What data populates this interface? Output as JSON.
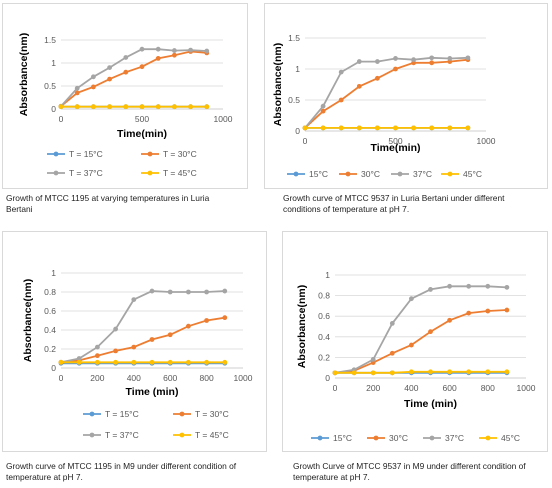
{
  "colors": {
    "series": [
      "#5b9bd5",
      "#ed7d31",
      "#a5a5a5",
      "#ffc000"
    ],
    "grid": "#d9d9d9",
    "axis": "#bfbfbf",
    "tick_text": "#595959"
  },
  "captions": [
    "Growth of MTCC 1195 at varying temperatures in Luria Bertani",
    "Growth curve of MTCC 9537 in Luria Bertani under different conditions of temperature at pH 7.",
    "Growth curve of MTCC 1195 in M9 under different condition of temperature at pH 7.",
    "Growth Curve of MTCC 9537 in M9 under different condition of temperature at pH 7."
  ],
  "chart_data": [
    {
      "type": "line",
      "title": "",
      "xlabel": "Time(min)",
      "ylabel": "Absorbance(nm)",
      "xlim": [
        0,
        1000
      ],
      "ylim": [
        0,
        1.5
      ],
      "xticks": [
        "0",
        "500",
        "1000"
      ],
      "yticks": [
        "0",
        "0.5",
        "1",
        "1.5"
      ],
      "grid": "horizontal",
      "legend_position": "bottom",
      "legend_rows": 2,
      "x": [
        0,
        100,
        200,
        300,
        400,
        500,
        600,
        700,
        800,
        900
      ],
      "series": [
        {
          "name": "T = 15°C",
          "values": [
            0.05,
            0.05,
            0.05,
            0.05,
            0.05,
            0.05,
            0.05,
            0.05,
            0.05,
            0.05
          ]
        },
        {
          "name": "T = 30°C",
          "values": [
            0.06,
            0.35,
            0.48,
            0.65,
            0.8,
            0.92,
            1.1,
            1.17,
            1.25,
            1.22
          ]
        },
        {
          "name": "T = 37°C",
          "values": [
            0.06,
            0.45,
            0.7,
            0.9,
            1.12,
            1.3,
            1.3,
            1.27,
            1.28,
            1.26
          ]
        },
        {
          "name": "T = 45°C",
          "values": [
            0.05,
            0.05,
            0.05,
            0.05,
            0.05,
            0.05,
            0.05,
            0.05,
            0.05,
            0.05
          ]
        }
      ]
    },
    {
      "type": "line",
      "title": "",
      "xlabel": "Time(min)",
      "ylabel": "Absorbance(nm)",
      "xlim": [
        0,
        1000
      ],
      "ylim": [
        0,
        1.5
      ],
      "xticks": [
        "0",
        "500",
        "1000"
      ],
      "yticks": [
        "0",
        "0.5",
        "1",
        "1.5"
      ],
      "grid": "horizontal",
      "legend_position": "bottom",
      "legend_rows": 1,
      "x": [
        0,
        100,
        200,
        300,
        400,
        500,
        600,
        700,
        800,
        900
      ],
      "series": [
        {
          "name": "15°C",
          "values": [
            0.05,
            0.05,
            0.05,
            0.05,
            0.05,
            0.05,
            0.05,
            0.05,
            0.05,
            0.05
          ]
        },
        {
          "name": "30°C",
          "values": [
            0.05,
            0.32,
            0.5,
            0.72,
            0.85,
            1.0,
            1.1,
            1.1,
            1.12,
            1.15
          ]
        },
        {
          "name": "37°C",
          "values": [
            0.05,
            0.4,
            0.95,
            1.12,
            1.12,
            1.17,
            1.15,
            1.18,
            1.17,
            1.18
          ]
        },
        {
          "name": "45°C",
          "values": [
            0.05,
            0.05,
            0.05,
            0.05,
            0.05,
            0.05,
            0.05,
            0.05,
            0.05,
            0.05
          ]
        }
      ]
    },
    {
      "type": "line",
      "title": "",
      "xlabel": "Time (min)",
      "ylabel": "Absorbance(nm)",
      "xlim": [
        0,
        1000
      ],
      "ylim": [
        0,
        1
      ],
      "xticks": [
        "0",
        "200",
        "400",
        "600",
        "800",
        "1000"
      ],
      "yticks": [
        "0",
        "0.2",
        "0.4",
        "0.6",
        "0.8",
        "1"
      ],
      "grid": "horizontal",
      "legend_position": "bottom",
      "legend_rows": 2,
      "x": [
        0,
        100,
        200,
        300,
        400,
        500,
        600,
        700,
        800,
        900
      ],
      "series": [
        {
          "name": "T = 15°C",
          "values": [
            0.05,
            0.05,
            0.05,
            0.05,
            0.05,
            0.05,
            0.05,
            0.05,
            0.05,
            0.05
          ]
        },
        {
          "name": "T = 30°C",
          "values": [
            0.06,
            0.08,
            0.13,
            0.18,
            0.22,
            0.3,
            0.35,
            0.44,
            0.5,
            0.53
          ]
        },
        {
          "name": "T = 37°C",
          "values": [
            0.06,
            0.1,
            0.22,
            0.41,
            0.72,
            0.81,
            0.8,
            0.8,
            0.8,
            0.81
          ]
        },
        {
          "name": "T = 45°C",
          "values": [
            0.06,
            0.06,
            0.06,
            0.06,
            0.06,
            0.06,
            0.06,
            0.06,
            0.06,
            0.06
          ]
        }
      ]
    },
    {
      "type": "line",
      "title": "",
      "xlabel": "Time (min)",
      "ylabel": "Absorbance(nm)",
      "xlim": [
        0,
        1000
      ],
      "ylim": [
        0,
        1
      ],
      "xticks": [
        "0",
        "200",
        "400",
        "600",
        "800",
        "1000"
      ],
      "yticks": [
        "0",
        "0.2",
        "0.4",
        "0.6",
        "0.8",
        "1"
      ],
      "grid": "horizontal",
      "legend_position": "bottom",
      "legend_rows": 1,
      "x": [
        0,
        100,
        200,
        300,
        400,
        500,
        600,
        700,
        800,
        900
      ],
      "series": [
        {
          "name": "15°C",
          "values": [
            0.05,
            0.05,
            0.05,
            0.05,
            0.05,
            0.05,
            0.05,
            0.05,
            0.05,
            0.05
          ]
        },
        {
          "name": "30°C",
          "values": [
            0.05,
            0.07,
            0.15,
            0.24,
            0.32,
            0.45,
            0.56,
            0.63,
            0.65,
            0.66
          ]
        },
        {
          "name": "37°C",
          "values": [
            0.05,
            0.08,
            0.18,
            0.53,
            0.77,
            0.86,
            0.89,
            0.89,
            0.89,
            0.88
          ]
        },
        {
          "name": "45°C",
          "values": [
            0.05,
            0.05,
            0.05,
            0.05,
            0.06,
            0.06,
            0.06,
            0.06,
            0.06,
            0.06
          ]
        }
      ]
    }
  ]
}
